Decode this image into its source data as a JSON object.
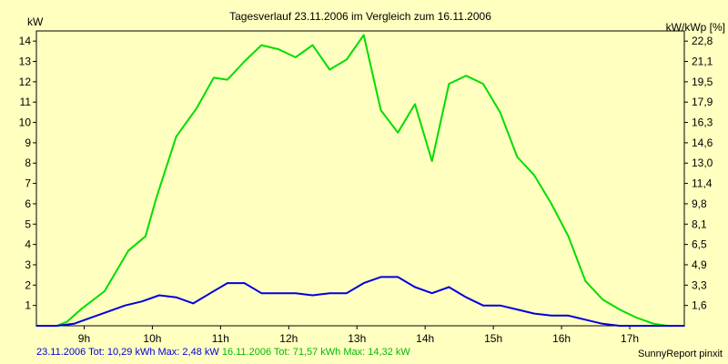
{
  "chart_data": {
    "type": "line",
    "title": "Tagesverlauf 23.11.2006 im Vergleich zum 16.11.2006",
    "ylabel_left": "kW",
    "ylabel_right": "kW/kWp [%]",
    "x_ticks": [
      "9h",
      "10h",
      "11h",
      "12h",
      "13h",
      "14h",
      "15h",
      "16h",
      "17h"
    ],
    "y_ticks_left": [
      "1",
      "2",
      "3",
      "4",
      "5",
      "6",
      "7",
      "8",
      "9",
      "10",
      "11",
      "12",
      "13",
      "14"
    ],
    "y_ticks_right": [
      "1,6",
      "3,3",
      "4,9",
      "6,5",
      "8,1",
      "9,8",
      "11,4",
      "13,0",
      "14,6",
      "16,3",
      "17,9",
      "19,5",
      "21,1",
      "22,8"
    ],
    "xlim": [
      8.3,
      17.8
    ],
    "ylim": [
      0,
      14.5
    ],
    "grid": true,
    "series": [
      {
        "name": "16.11.2006",
        "color": "#00dd00",
        "x": [
          8.3,
          8.6,
          8.75,
          8.95,
          9.3,
          9.65,
          9.9,
          10.05,
          10.35,
          10.65,
          10.9,
          11.1,
          11.35,
          11.6,
          11.85,
          12.1,
          12.35,
          12.6,
          12.85,
          13.1,
          13.35,
          13.6,
          13.85,
          14.1,
          14.35,
          14.6,
          14.85,
          15.1,
          15.35,
          15.6,
          15.85,
          16.1,
          16.35,
          16.6,
          16.85,
          17.1,
          17.35,
          17.55,
          17.8
        ],
        "y": [
          0,
          0,
          0.2,
          0.8,
          1.7,
          3.7,
          4.4,
          6.2,
          9.3,
          10.7,
          12.2,
          12.1,
          13.0,
          13.8,
          13.6,
          13.2,
          13.8,
          12.6,
          13.1,
          14.3,
          10.6,
          9.5,
          10.9,
          8.1,
          11.9,
          12.3,
          11.9,
          10.5,
          8.3,
          7.4,
          6.0,
          4.4,
          2.2,
          1.3,
          0.8,
          0.4,
          0.1,
          0,
          0
        ]
      },
      {
        "name": "23.11.2006",
        "color": "#0000dd",
        "x": [
          8.3,
          8.6,
          8.85,
          9.1,
          9.35,
          9.6,
          9.85,
          10.1,
          10.35,
          10.6,
          10.85,
          11.1,
          11.35,
          11.6,
          11.85,
          12.1,
          12.35,
          12.6,
          12.85,
          13.1,
          13.35,
          13.6,
          13.85,
          14.1,
          14.35,
          14.6,
          14.85,
          15.1,
          15.35,
          15.6,
          15.85,
          16.1,
          16.35,
          16.6,
          16.85,
          17.1,
          17.35,
          17.55,
          17.8
        ],
        "y": [
          0,
          0,
          0.1,
          0.4,
          0.7,
          1.0,
          1.2,
          1.5,
          1.4,
          1.1,
          1.6,
          2.1,
          2.1,
          1.6,
          1.6,
          1.6,
          1.5,
          1.6,
          1.6,
          2.1,
          2.4,
          2.4,
          1.9,
          1.6,
          1.9,
          1.4,
          1.0,
          1.0,
          0.8,
          0.6,
          0.5,
          0.5,
          0.3,
          0.1,
          0,
          0,
          0,
          0,
          0
        ]
      }
    ]
  },
  "footer": {
    "a": "23.11.2006 Tot: 10,29 kWh Max: 2,48 kW",
    "b": "16.11.2006 Tot: 71,57 kWh Max: 14,32 kW",
    "credit": "SunnyReport pinxit"
  }
}
